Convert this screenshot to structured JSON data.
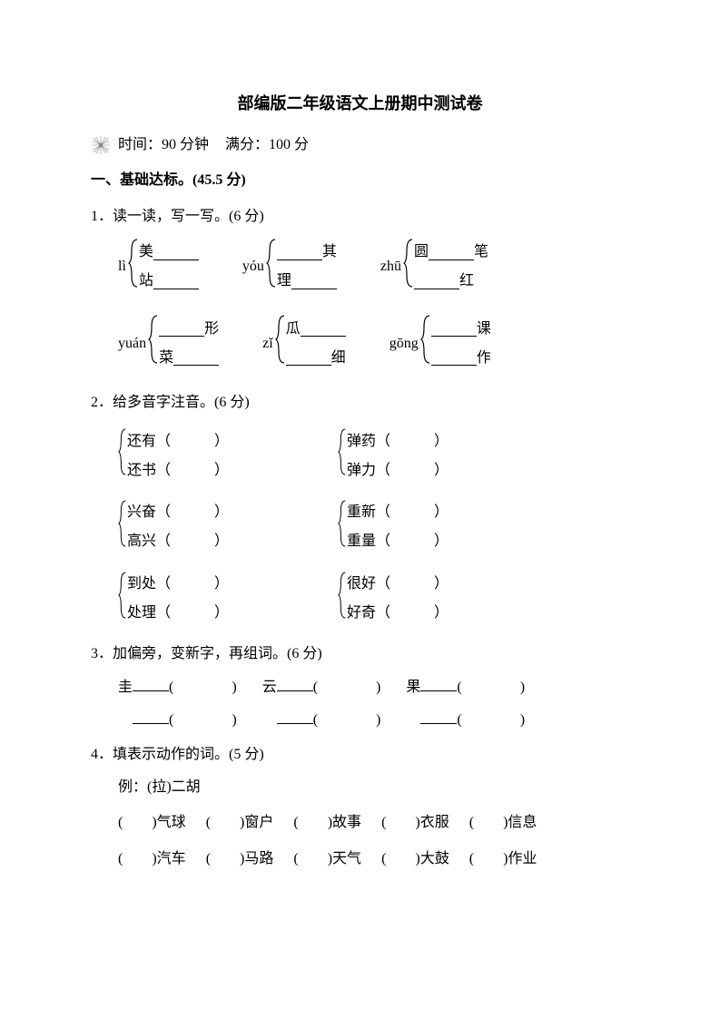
{
  "title": "部编版二年级语文上册期中测试卷",
  "time_label": "时间：90 分钟",
  "score_label": "满分：100 分",
  "section1": {
    "header": "一、基础达标。(45.5 分)",
    "q1": {
      "text": "1．读一读，写一写。(6 分)",
      "row1": [
        {
          "pinyin": "lì",
          "opts": [
            {
              "pre": "美",
              "post": ""
            },
            {
              "pre": "站",
              "post": ""
            }
          ]
        },
        {
          "pinyin": "yóu",
          "opts": [
            {
              "pre": "",
              "post": "其"
            },
            {
              "pre": "理",
              "post": ""
            }
          ]
        },
        {
          "pinyin": "zhū",
          "opts": [
            {
              "pre": "圆",
              "post": "笔"
            },
            {
              "pre": "",
              "post": "红"
            }
          ]
        }
      ],
      "row2": [
        {
          "pinyin": "yuán",
          "opts": [
            {
              "pre": "",
              "post": "形"
            },
            {
              "pre": "菜",
              "post": ""
            }
          ]
        },
        {
          "pinyin": "zǐ",
          "opts": [
            {
              "pre": "瓜",
              "post": ""
            },
            {
              "pre": "",
              "post": "细"
            }
          ]
        },
        {
          "pinyin": "gōng",
          "opts": [
            {
              "pre": "",
              "post": "课"
            },
            {
              "pre": "",
              "post": "作"
            }
          ]
        }
      ]
    },
    "q2": {
      "text": "2．给多音字注音。(6 分)",
      "pairs": [
        {
          "left": [
            "还有（　　　）",
            "还书（　　　）"
          ],
          "right": [
            "弹药（　　　）",
            "弹力（　　　）"
          ]
        },
        {
          "left": [
            "兴奋（　　　）",
            "高兴（　　　）"
          ],
          "right": [
            "重新（　　　）",
            "重量（　　　）"
          ]
        },
        {
          "left": [
            "到处（　　　）",
            "处理（　　　）"
          ],
          "right": [
            "很好（　　　）",
            "好奇（　　　）"
          ]
        }
      ]
    },
    "q3": {
      "text": "3．加偏旁，变新字，再组词。(6 分)",
      "row1": [
        "圭",
        "云",
        "果"
      ],
      "row2_blanks": 3
    },
    "q4": {
      "text": "4．填表示动作的词。(5 分)",
      "example": "例：(拉)二胡",
      "row1": [
        "气球",
        "窗户",
        "故事",
        "衣服",
        "信息"
      ],
      "row2": [
        "汽车",
        "马路",
        "天气",
        "大鼓",
        "作业"
      ]
    }
  },
  "colors": {
    "text": "#000000",
    "background": "#ffffff",
    "line": "#000000"
  }
}
